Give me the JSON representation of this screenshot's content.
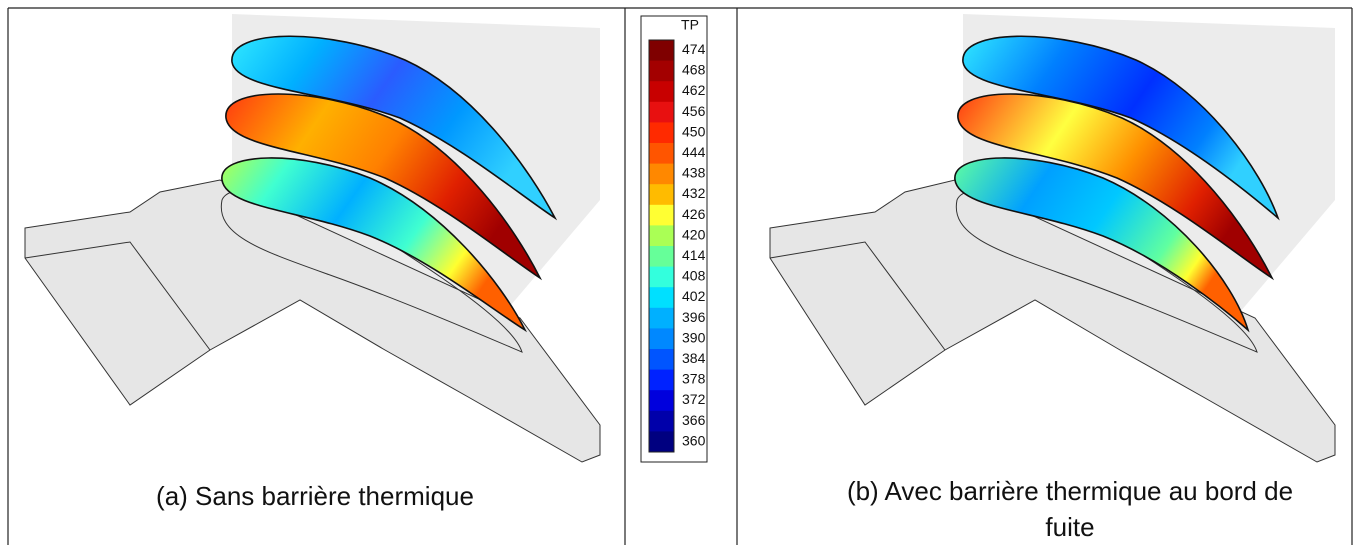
{
  "colorbar": {
    "title": "TP",
    "ticks": [
      474,
      468,
      462,
      456,
      450,
      444,
      438,
      432,
      426,
      420,
      414,
      408,
      402,
      396,
      390,
      384,
      378,
      372,
      366,
      360
    ],
    "colors": [
      "#7f0000",
      "#a30000",
      "#c80000",
      "#e81010",
      "#ff2a00",
      "#ff5500",
      "#ff8800",
      "#ffbb00",
      "#ffff33",
      "#aaff55",
      "#66ff99",
      "#33ffdd",
      "#00e0ff",
      "#00b0ff",
      "#0088ff",
      "#0055ff",
      "#0022ff",
      "#0000dd",
      "#0000aa",
      "#000080"
    ]
  },
  "panels": [
    {
      "caption": "(a)  Sans barrière thermique"
    },
    {
      "caption_lines": [
        "(b)  Avec barrière thermique au bord de",
        "fuite"
      ]
    }
  ]
}
